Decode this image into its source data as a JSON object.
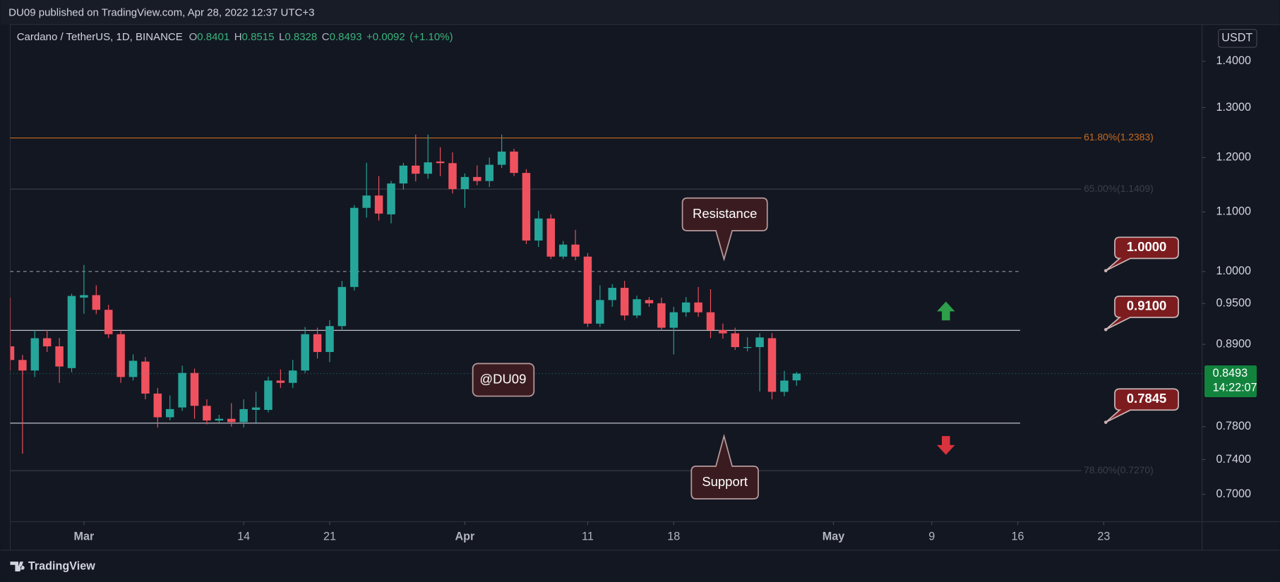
{
  "chart_data": {
    "type": "candlestick",
    "header": "DU09 published on TradingView.com, Apr 28, 2022 12:37 UTC+3",
    "symbol": "Cardano / TetherUS, 1D, BINANCE",
    "ohlc_labels": [
      "O",
      "H",
      "L",
      "C"
    ],
    "change": "+0.0092",
    "change_pct": "(+1.10%)",
    "currency": "USDT",
    "countdown": "14:22:07",
    "footer_brand": "TradingView",
    "resistance_label": "Resistance",
    "support_label": "Support",
    "watermark": "@DU09",
    "up_color": "#26a69a",
    "down_color": "#f0515e",
    "log_scale": true,
    "grid": false,
    "x": [
      "2022-02-23",
      "2022-02-24",
      "2022-02-25",
      "2022-02-26",
      "2022-02-27",
      "2022-02-28",
      "2022-03-01",
      "2022-03-02",
      "2022-03-03",
      "2022-03-04",
      "2022-03-05",
      "2022-03-06",
      "2022-03-07",
      "2022-03-08",
      "2022-03-09",
      "2022-03-10",
      "2022-03-11",
      "2022-03-12",
      "2022-03-13",
      "2022-03-14",
      "2022-03-15",
      "2022-03-16",
      "2022-03-17",
      "2022-03-18",
      "2022-03-19",
      "2022-03-20",
      "2022-03-21",
      "2022-03-22",
      "2022-03-23",
      "2022-03-24",
      "2022-03-25",
      "2022-03-26",
      "2022-03-27",
      "2022-03-28",
      "2022-03-29",
      "2022-03-30",
      "2022-03-31",
      "2022-04-01",
      "2022-04-02",
      "2022-04-03",
      "2022-04-04",
      "2022-04-05",
      "2022-04-06",
      "2022-04-07",
      "2022-04-08",
      "2022-04-09",
      "2022-04-10",
      "2022-04-11",
      "2022-04-12",
      "2022-04-13",
      "2022-04-14",
      "2022-04-15",
      "2022-04-16",
      "2022-04-17",
      "2022-04-18",
      "2022-04-19",
      "2022-04-20",
      "2022-04-21",
      "2022-04-22",
      "2022-04-23",
      "2022-04-24",
      "2022-04-25",
      "2022-04-26",
      "2022-04-27",
      "2022-04-28"
    ],
    "open": [
      0.8871,
      0.8679,
      0.8534,
      0.8987,
      0.8871,
      0.8567,
      0.9591,
      0.9628,
      0.9405,
      0.9045,
      0.8446,
      0.8657,
      0.8225,
      0.7919,
      0.8044,
      0.8501,
      0.8065,
      0.7878,
      0.7899,
      0.7858,
      0.8013,
      0.8013,
      0.8398,
      0.8367,
      0.8534,
      0.9045,
      0.8791,
      0.9163,
      0.9755,
      1.1072,
      1.1293,
      1.0957,
      1.1513,
      1.1847,
      1.1694,
      1.1925,
      1.1894,
      1.141,
      1.1633,
      1.1558,
      1.1863,
      1.2116,
      1.1709,
      1.0508,
      1.0885,
      1.0241,
      1.044,
      1.0241,
      0.9199,
      0.9553,
      0.9742,
      0.932,
      0.9553,
      0.9504,
      0.9139,
      0.9368,
      0.9516,
      0.9368,
      0.9104,
      0.9057,
      0.8848,
      0.886,
      0.8987,
      0.8248,
      0.8401
    ],
    "high": [
      0.9591,
      0.875,
      0.9104,
      0.9104,
      0.899,
      0.965,
      1.0105,
      0.9781,
      0.948,
      0.91,
      0.8757,
      0.872,
      0.83,
      0.82,
      0.86,
      0.856,
      0.815,
      0.795,
      0.81,
      0.815,
      0.825,
      0.845,
      0.855,
      0.868,
      0.915,
      0.914,
      0.925,
      0.985,
      1.112,
      1.19,
      1.165,
      1.156,
      1.19,
      1.245,
      1.245,
      1.22,
      1.21,
      1.17,
      1.185,
      1.2,
      1.245,
      1.217,
      1.178,
      1.102,
      1.096,
      1.05,
      1.0687,
      1.03,
      0.9781,
      0.98,
      0.985,
      0.962,
      0.96,
      0.959,
      0.945,
      0.96,
      0.9755,
      0.972,
      0.92,
      0.914,
      0.9,
      0.906,
      0.906,
      0.853,
      0.8515
    ],
    "low": [
      0.8534,
      0.7469,
      0.8446,
      0.879,
      0.8367,
      0.851,
      0.9344,
      0.934,
      0.899,
      0.8367,
      0.8398,
      0.815,
      0.7789,
      0.788,
      0.8,
      0.79,
      0.783,
      0.785,
      0.78,
      0.779,
      0.785,
      0.798,
      0.83,
      0.83,
      0.85,
      0.87,
      0.865,
      0.91,
      0.97,
      1.09,
      1.085,
      1.08,
      1.14,
      1.155,
      1.16,
      1.165,
      1.133,
      1.1072,
      1.148,
      1.145,
      1.18,
      1.165,
      1.045,
      1.04,
      1.02,
      1.02,
      1.018,
      0.915,
      0.915,
      0.945,
      0.925,
      0.928,
      0.945,
      0.91,
      0.8757,
      0.93,
      0.93,
      0.899,
      0.898,
      0.882,
      0.88,
      0.8254,
      0.815,
      0.819,
      0.8328
    ],
    "close": [
      0.8679,
      0.8534,
      0.8987,
      0.8871,
      0.8589,
      0.9616,
      0.9628,
      0.9405,
      0.9045,
      0.8446,
      0.8668,
      0.8225,
      0.7919,
      0.8023,
      0.8501,
      0.8065,
      0.7878,
      0.7899,
      0.7858,
      0.8023,
      0.8044,
      0.8398,
      0.8367,
      0.8534,
      0.9045,
      0.8791,
      0.9163,
      0.9755,
      1.1072,
      1.1293,
      1.0971,
      1.1513,
      1.1847,
      1.1694,
      1.1909,
      1.1894,
      1.141,
      1.1633,
      1.1558,
      1.1863,
      1.2116,
      1.1709,
      1.0508,
      1.0885,
      1.0241,
      1.044,
      1.0241,
      0.9199,
      0.9553,
      0.9742,
      0.932,
      0.9566,
      0.9504,
      0.9139,
      0.9368,
      0.9516,
      0.9368,
      0.9104,
      0.9057,
      0.886,
      0.886,
      0.8998,
      0.8248,
      0.8398,
      0.8493
    ],
    "xlim": [
      "2022-02-23",
      "2022-05-31"
    ],
    "xticks": [
      {
        "value": "2022-03-01",
        "label": "Mar"
      },
      {
        "value": "2022-03-14",
        "label": "14"
      },
      {
        "value": "2022-03-21",
        "label": "21"
      },
      {
        "value": "2022-04-01",
        "label": "Apr"
      },
      {
        "value": "2022-04-11",
        "label": "11"
      },
      {
        "value": "2022-04-18",
        "label": "18"
      },
      {
        "value": "2022-05-01",
        "label": "May"
      },
      {
        "value": "2022-05-09",
        "label": "9"
      },
      {
        "value": "2022-05-16",
        "label": "16"
      },
      {
        "value": "2022-05-23",
        "label": "23"
      }
    ],
    "ylim": [
      0.67,
      1.485
    ],
    "yticks": [
      {
        "value": 1.4,
        "label": "1.4000"
      },
      {
        "value": 1.3,
        "label": "1.3000"
      },
      {
        "value": 1.2,
        "label": "1.2000"
      },
      {
        "value": 1.1,
        "label": "1.1000"
      },
      {
        "value": 1.0,
        "label": "1.0000"
      },
      {
        "value": 0.95,
        "label": "0.9500"
      },
      {
        "value": 0.89,
        "label": "0.8900"
      },
      {
        "value": 0.78,
        "label": "0.7800"
      },
      {
        "value": 0.74,
        "label": "0.7400"
      },
      {
        "value": 0.7,
        "label": "0.7000"
      }
    ],
    "levels": [
      {
        "value": 1.0,
        "label": "1.0000",
        "style": "dashed"
      },
      {
        "value": 0.91,
        "label": "0.9100",
        "style": "solid"
      },
      {
        "value": 0.7845,
        "label": "0.7845",
        "style": "solid"
      }
    ],
    "fib_levels": [
      {
        "value": 1.2383,
        "label": "61.80%(1.2383)",
        "color": "#c46b1f"
      },
      {
        "value": 1.1409,
        "label": "65.00%(1.1409)",
        "color": "#3b3f4a"
      },
      {
        "value": 0.727,
        "label": "78.60%(0.7270)",
        "color": "#3b3f4a"
      }
    ]
  }
}
